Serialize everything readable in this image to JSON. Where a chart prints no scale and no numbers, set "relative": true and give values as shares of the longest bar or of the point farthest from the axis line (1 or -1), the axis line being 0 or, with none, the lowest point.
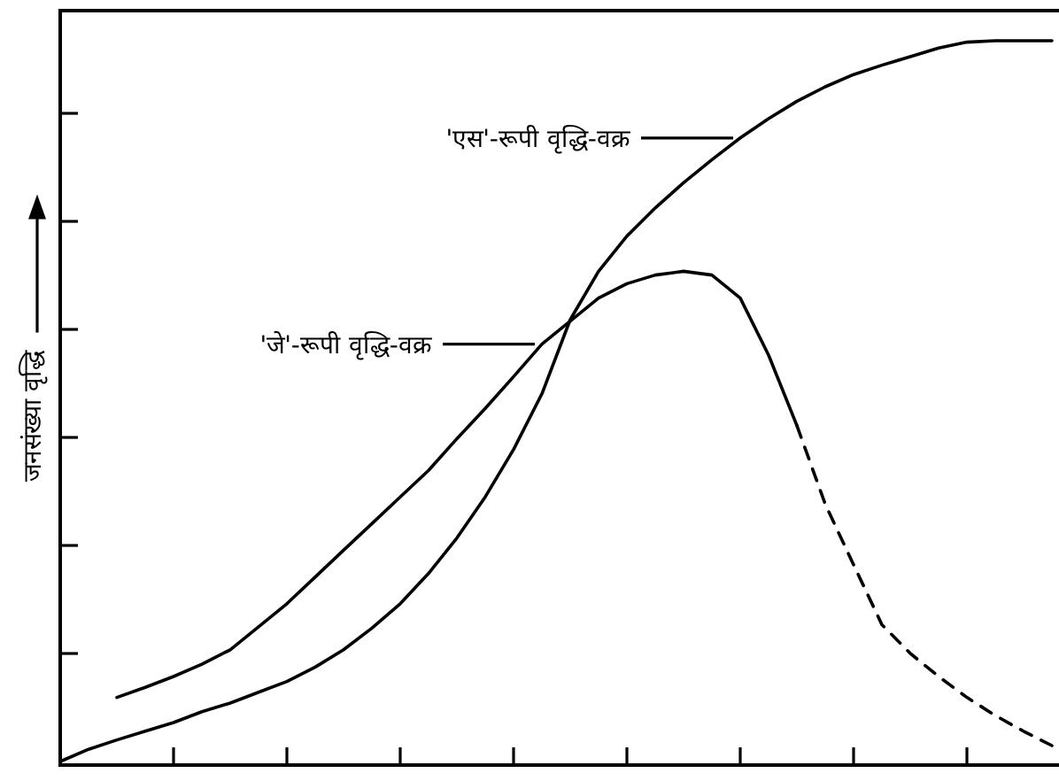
{
  "chart_data": {
    "type": "line",
    "relative": true,
    "ylabel": "जनसंख्या वृद्धि",
    "legend": "top",
    "grid": false,
    "marker": "none",
    "line_style": "solid",
    "categories": [
      null,
      null,
      null,
      null,
      null,
      null,
      null,
      null,
      null,
      null,
      null,
      null,
      null,
      null,
      null,
      null,
      null,
      null,
      null,
      null,
      null,
      null,
      null,
      null,
      null,
      null,
      null,
      null,
      null,
      null,
      null,
      null,
      null,
      null,
      null,
      null
    ],
    "series": [
      {
        "name": "'एस'-रूपी वृद्धि-वक्र",
        "color": "#000000",
        "values": [
          0,
          0.017,
          0.03,
          0.042,
          0.054,
          0.069,
          0.081,
          0.096,
          0.111,
          0.131,
          0.155,
          0.185,
          0.219,
          0.261,
          0.31,
          0.367,
          0.433,
          0.51,
          0.613,
          0.68,
          0.729,
          0.768,
          0.803,
          0.835,
          0.865,
          0.892,
          0.916,
          0.936,
          0.953,
          0.966,
          0.978,
          0.99,
          0.998,
          1,
          1,
          1
        ]
      },
      {
        "name": "'जे'-रूपी वृद्धि-वक्र",
        "color": "#000000",
        "values": [
          null,
          null,
          0.089,
          0.103,
          0.118,
          0.135,
          0.155,
          0.187,
          0.219,
          0.256,
          0.293,
          0.33,
          0.367,
          0.404,
          0.448,
          0.49,
          0.534,
          0.579,
          0.611,
          0.643,
          0.663,
          0.675,
          0.68,
          0.675,
          0.643,
          0.564,
          0.466,
          null,
          null,
          null,
          null,
          null,
          null,
          null,
          null,
          null
        ]
      },
      {
        "color": "#000000",
        "line_style": "dashed",
        "values": [
          null,
          null,
          null,
          null,
          null,
          null,
          null,
          null,
          null,
          null,
          null,
          null,
          null,
          null,
          null,
          null,
          null,
          null,
          null,
          null,
          null,
          null,
          null,
          null,
          null,
          null,
          0.466,
          0.357,
          0.273,
          0.19,
          0.15,
          0.118,
          0.089,
          0.064,
          0.042,
          0.022
        ]
      }
    ]
  }
}
